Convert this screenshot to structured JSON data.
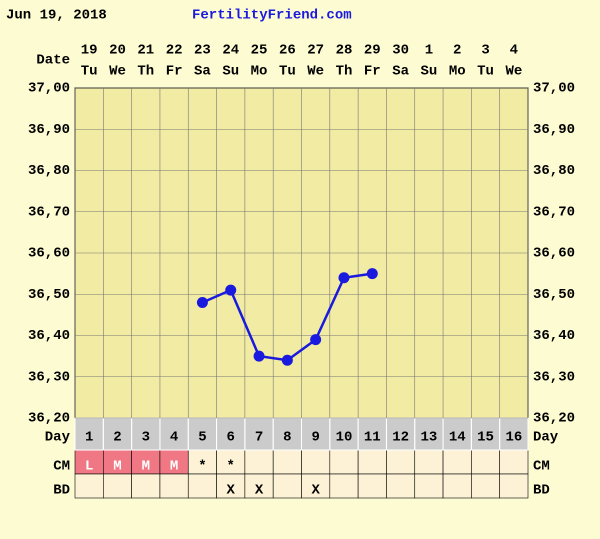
{
  "chart_data": {
    "type": "line",
    "title": "Jun 19, 2018",
    "subtitle": "FertilityFriend.com",
    "x_label": "Date",
    "dates": [
      "19",
      "20",
      "21",
      "22",
      "23",
      "24",
      "25",
      "26",
      "27",
      "28",
      "29",
      "30",
      "1",
      "2",
      "3",
      "4"
    ],
    "weekdays": [
      "Tu",
      "We",
      "Th",
      "Fr",
      "Sa",
      "Su",
      "Mo",
      "Tu",
      "We",
      "Th",
      "Fr",
      "Sa",
      "Su",
      "Mo",
      "Tu",
      "We"
    ],
    "day_label": "Day",
    "categories": [
      "1",
      "2",
      "3",
      "4",
      "5",
      "6",
      "7",
      "8",
      "9",
      "10",
      "11",
      "12",
      "13",
      "14",
      "15",
      "16"
    ],
    "values": [
      null,
      null,
      null,
      null,
      36.48,
      36.51,
      36.35,
      36.34,
      36.39,
      36.54,
      36.55,
      null,
      null,
      null,
      null,
      null
    ],
    "color": "#1a1adf",
    "ylim": [
      36.2,
      37.0
    ],
    "yticks": [
      {
        "value": 36.2,
        "label": "36,20"
      },
      {
        "value": 36.3,
        "label": "36,30"
      },
      {
        "value": 36.4,
        "label": "36,40"
      },
      {
        "value": 36.5,
        "label": "36,50"
      },
      {
        "value": 36.6,
        "label": "36,60"
      },
      {
        "value": 36.7,
        "label": "36,70"
      },
      {
        "value": 36.8,
        "label": "36,80"
      },
      {
        "value": 36.9,
        "label": "36,90"
      },
      {
        "value": 37.0,
        "label": "37,00"
      }
    ],
    "grid": true,
    "cm_label": "CM",
    "cm": [
      "L",
      "M",
      "M",
      "M",
      "*",
      "*",
      null,
      null,
      null,
      null,
      null,
      null,
      null,
      null,
      null,
      null
    ],
    "cm_fill": [
      "#f07884",
      "#f07884",
      "#f07884",
      "#f07884",
      null,
      null,
      null,
      null,
      null,
      null,
      null,
      null,
      null,
      null,
      null,
      null
    ],
    "bd_label": "BD",
    "bd": [
      null,
      null,
      null,
      null,
      null,
      "X",
      "X",
      null,
      "X",
      null,
      null,
      null,
      null,
      null,
      null,
      null
    ]
  }
}
